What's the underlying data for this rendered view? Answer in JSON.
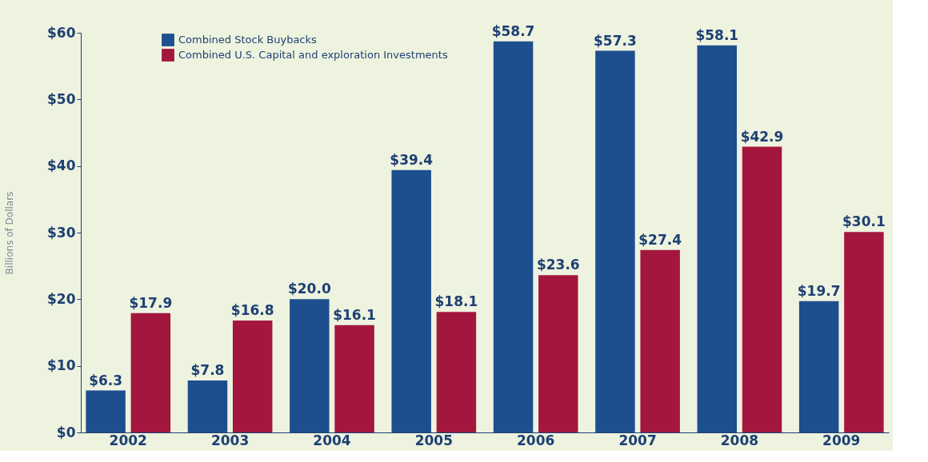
{
  "chart_data": {
    "type": "bar",
    "ylabel": "Billions of Dollars",
    "categories": [
      "2002",
      "2003",
      "2004",
      "2005",
      "2006",
      "2007",
      "2008",
      "2009"
    ],
    "series": [
      {
        "name": "Combined Stock Buybacks",
        "color": "#1d4f8f",
        "values": [
          6.3,
          7.8,
          20.0,
          39.4,
          58.7,
          57.3,
          58.1,
          19.7
        ],
        "value_labels": [
          "$6.3",
          "$7.8",
          "$20.0",
          "$39.4",
          "$58.7",
          "$57.3",
          "$58.1",
          "$19.7"
        ]
      },
      {
        "name": "Combined U.S. Capital and exploration Investments",
        "color": "#a3173f",
        "values": [
          17.9,
          16.8,
          16.1,
          18.1,
          23.6,
          27.4,
          42.9,
          30.1
        ],
        "value_labels": [
          "$17.9",
          "$16.8",
          "$16.1",
          "$18.1",
          "$23.6",
          "$27.4",
          "$42.9",
          "$30.1"
        ]
      }
    ],
    "ylim": [
      0,
      60
    ],
    "yticks": [
      {
        "value": 0,
        "label": "$0"
      },
      {
        "value": 10,
        "label": "$10"
      },
      {
        "value": 20,
        "label": "$20"
      },
      {
        "value": 30,
        "label": "$30"
      },
      {
        "value": 40,
        "label": "$40"
      },
      {
        "value": 50,
        "label": "$50"
      },
      {
        "value": 60,
        "label": "$60"
      }
    ],
    "grid": false,
    "legend": "top left"
  }
}
